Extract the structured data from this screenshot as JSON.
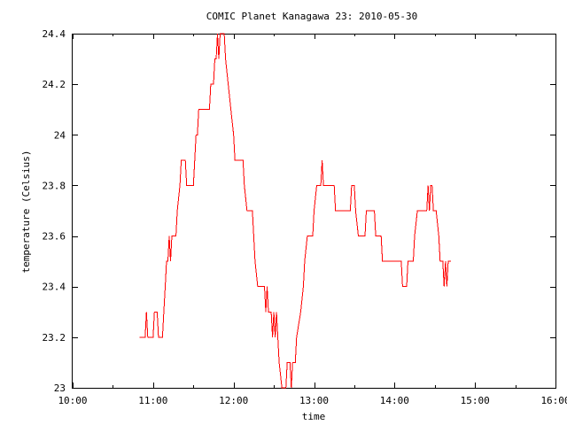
{
  "chart_data": {
    "type": "line",
    "title": "COMIC Planet Kanagawa 23: 2010-05-30",
    "xlabel": "time",
    "ylabel": "temperature (Celsius)",
    "xlim": [
      "10:00",
      "16:00"
    ],
    "ylim": [
      23.0,
      24.4
    ],
    "x_ticks": [
      "10:00",
      "11:00",
      "12:00",
      "13:00",
      "14:00",
      "15:00",
      "16:00"
    ],
    "y_ticks": [
      "23",
      "23.2",
      "23.4",
      "23.6",
      "23.8",
      "24",
      "24.2",
      "24.4"
    ],
    "grid": false,
    "legend": "none",
    "colors": {
      "series": "#ff0000",
      "axis": "#000000",
      "background": "#ffffff"
    },
    "series": [
      {
        "points": [
          [
            "10:50",
            23.2
          ],
          [
            "10:54",
            23.2
          ],
          [
            "10:55",
            23.3
          ],
          [
            "10:56",
            23.2
          ],
          [
            "11:00",
            23.2
          ],
          [
            "11:01",
            23.3
          ],
          [
            "11:03",
            23.3
          ],
          [
            "11:04",
            23.2
          ],
          [
            "11:07",
            23.2
          ],
          [
            "11:08",
            23.3
          ],
          [
            "11:09",
            23.4
          ],
          [
            "11:10",
            23.5
          ],
          [
            "11:11",
            23.5
          ],
          [
            "11:12",
            23.6
          ],
          [
            "11:13",
            23.5
          ],
          [
            "11:14",
            23.6
          ],
          [
            "11:17",
            23.6
          ],
          [
            "11:18",
            23.7
          ],
          [
            "11:20",
            23.8
          ],
          [
            "11:21",
            23.9
          ],
          [
            "11:24",
            23.9
          ],
          [
            "11:25",
            23.8
          ],
          [
            "11:30",
            23.8
          ],
          [
            "11:32",
            24.0
          ],
          [
            "11:33",
            24.0
          ],
          [
            "11:34",
            24.1
          ],
          [
            "11:42",
            24.1
          ],
          [
            "11:43",
            24.2
          ],
          [
            "11:45",
            24.2
          ],
          [
            "11:46",
            24.3
          ],
          [
            "11:47",
            24.3
          ],
          [
            "11:48",
            24.4
          ],
          [
            "11:49",
            24.3
          ],
          [
            "11:50",
            24.4
          ],
          [
            "11:53",
            24.4
          ],
          [
            "11:54",
            24.3
          ],
          [
            "11:56",
            24.2
          ],
          [
            "11:58",
            24.1
          ],
          [
            "12:00",
            24.0
          ],
          [
            "12:01",
            23.9
          ],
          [
            "12:07",
            23.9
          ],
          [
            "12:08",
            23.8
          ],
          [
            "12:10",
            23.7
          ],
          [
            "12:14",
            23.7
          ],
          [
            "12:15",
            23.6
          ],
          [
            "12:16",
            23.5
          ],
          [
            "12:18",
            23.4
          ],
          [
            "12:23",
            23.4
          ],
          [
            "12:24",
            23.3
          ],
          [
            "12:25",
            23.4
          ],
          [
            "12:26",
            23.3
          ],
          [
            "12:28",
            23.3
          ],
          [
            "12:29",
            23.2
          ],
          [
            "12:30",
            23.3
          ],
          [
            "12:31",
            23.2
          ],
          [
            "12:32",
            23.3
          ],
          [
            "12:33",
            23.2
          ],
          [
            "12:34",
            23.1
          ],
          [
            "12:36",
            23.0
          ],
          [
            "12:39",
            23.0
          ],
          [
            "12:40",
            23.1
          ],
          [
            "12:42",
            23.1
          ],
          [
            "12:43",
            23.0
          ],
          [
            "12:44",
            23.1
          ],
          [
            "12:46",
            23.1
          ],
          [
            "12:47",
            23.2
          ],
          [
            "12:50",
            23.3
          ],
          [
            "12:52",
            23.4
          ],
          [
            "12:53",
            23.5
          ],
          [
            "12:55",
            23.6
          ],
          [
            "12:59",
            23.6
          ],
          [
            "13:00",
            23.7
          ],
          [
            "13:02",
            23.8
          ],
          [
            "13:05",
            23.8
          ],
          [
            "13:06",
            23.9
          ],
          [
            "13:07",
            23.8
          ],
          [
            "13:15",
            23.8
          ],
          [
            "13:16",
            23.7
          ],
          [
            "13:27",
            23.7
          ],
          [
            "13:28",
            23.8
          ],
          [
            "13:30",
            23.8
          ],
          [
            "13:31",
            23.7
          ],
          [
            "13:33",
            23.6
          ],
          [
            "13:38",
            23.6
          ],
          [
            "13:39",
            23.7
          ],
          [
            "13:45",
            23.7
          ],
          [
            "13:46",
            23.6
          ],
          [
            "13:50",
            23.6
          ],
          [
            "13:51",
            23.5
          ],
          [
            "14:05",
            23.5
          ],
          [
            "14:06",
            23.4
          ],
          [
            "14:09",
            23.4
          ],
          [
            "14:10",
            23.5
          ],
          [
            "14:14",
            23.5
          ],
          [
            "14:15",
            23.6
          ],
          [
            "14:17",
            23.7
          ],
          [
            "14:24",
            23.7
          ],
          [
            "14:25",
            23.8
          ],
          [
            "14:26",
            23.7
          ],
          [
            "14:27",
            23.8
          ],
          [
            "14:28",
            23.8
          ],
          [
            "14:29",
            23.7
          ],
          [
            "14:31",
            23.7
          ],
          [
            "14:33",
            23.6
          ],
          [
            "14:34",
            23.5
          ],
          [
            "14:36",
            23.5
          ],
          [
            "14:37",
            23.4
          ],
          [
            "14:38",
            23.5
          ],
          [
            "14:39",
            23.4
          ],
          [
            "14:40",
            23.5
          ],
          [
            "14:42",
            23.5
          ]
        ]
      }
    ]
  }
}
